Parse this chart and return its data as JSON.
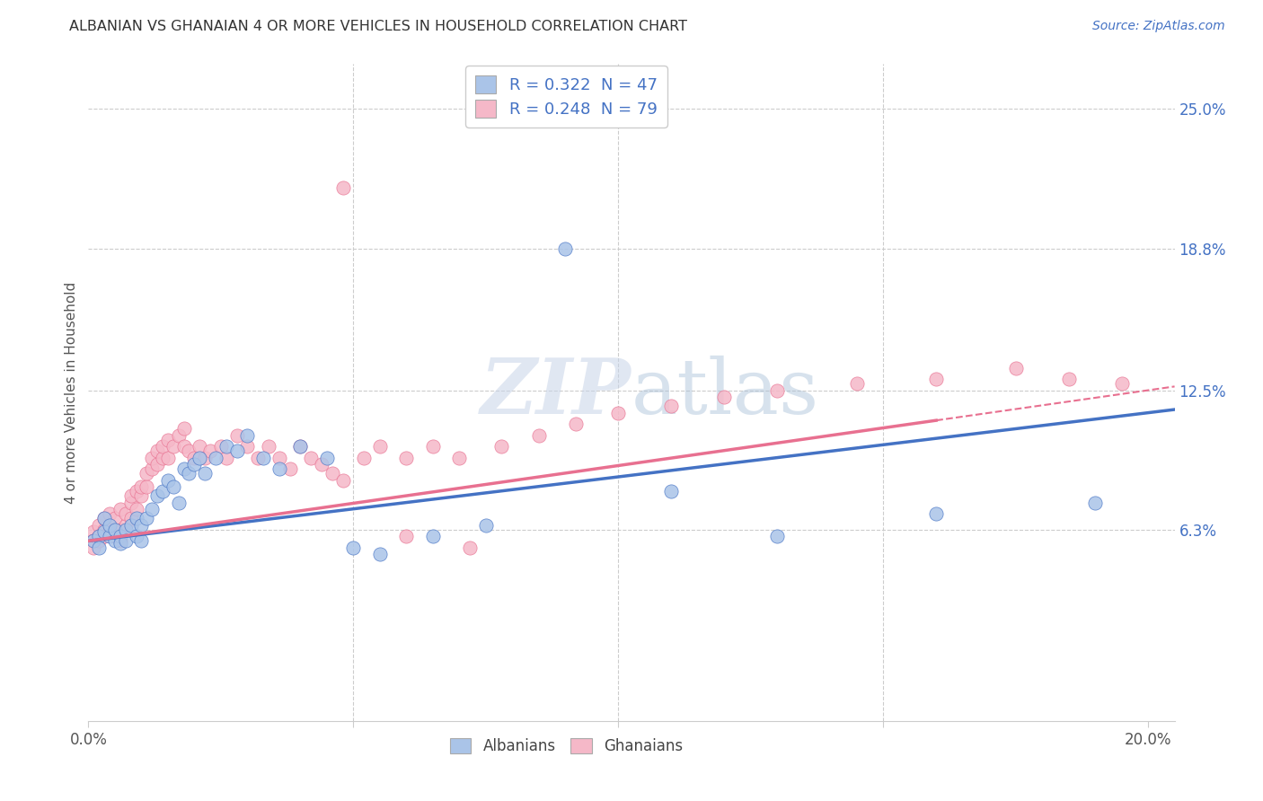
{
  "title": "ALBANIAN VS GHANAIAN 4 OR MORE VEHICLES IN HOUSEHOLD CORRELATION CHART",
  "source": "Source: ZipAtlas.com",
  "ylabel": "4 or more Vehicles in Household",
  "ytick_labels": [
    "6.3%",
    "12.5%",
    "18.8%",
    "25.0%"
  ],
  "ytick_values": [
    0.063,
    0.125,
    0.188,
    0.25
  ],
  "xlim": [
    0.0,
    0.205
  ],
  "ylim": [
    -0.022,
    0.27
  ],
  "background_color": "#ffffff",
  "grid_color": "#cccccc",
  "albanian_color": "#aac4e8",
  "ghanaian_color": "#f5b8c8",
  "albanian_line_color": "#4472c4",
  "ghanaian_line_color": "#e87090",
  "albanian_R": 0.322,
  "albanian_N": 47,
  "ghanaian_R": 0.248,
  "ghanaian_N": 79,
  "watermark_zip": "ZIP",
  "watermark_atlas": "atlas",
  "tick_label_color": "#4472c4",
  "title_color": "#333333",
  "source_color": "#4472c4",
  "albanian_x": [
    0.001,
    0.002,
    0.002,
    0.003,
    0.003,
    0.004,
    0.004,
    0.005,
    0.005,
    0.006,
    0.006,
    0.007,
    0.007,
    0.008,
    0.009,
    0.009,
    0.01,
    0.01,
    0.011,
    0.012,
    0.013,
    0.014,
    0.015,
    0.016,
    0.017,
    0.018,
    0.019,
    0.02,
    0.021,
    0.022,
    0.024,
    0.026,
    0.028,
    0.03,
    0.033,
    0.036,
    0.04,
    0.045,
    0.05,
    0.055,
    0.065,
    0.075,
    0.09,
    0.11,
    0.13,
    0.16,
    0.19
  ],
  "albanian_y": [
    0.058,
    0.06,
    0.055,
    0.062,
    0.068,
    0.06,
    0.065,
    0.058,
    0.063,
    0.06,
    0.057,
    0.063,
    0.058,
    0.065,
    0.06,
    0.068,
    0.065,
    0.058,
    0.068,
    0.072,
    0.078,
    0.08,
    0.085,
    0.082,
    0.075,
    0.09,
    0.088,
    0.092,
    0.095,
    0.088,
    0.095,
    0.1,
    0.098,
    0.105,
    0.095,
    0.09,
    0.1,
    0.095,
    0.055,
    0.052,
    0.06,
    0.065,
    0.188,
    0.08,
    0.06,
    0.07,
    0.075
  ],
  "ghanaian_x": [
    0.001,
    0.001,
    0.001,
    0.002,
    0.002,
    0.002,
    0.003,
    0.003,
    0.003,
    0.004,
    0.004,
    0.004,
    0.005,
    0.005,
    0.005,
    0.006,
    0.006,
    0.006,
    0.007,
    0.007,
    0.008,
    0.008,
    0.008,
    0.009,
    0.009,
    0.01,
    0.01,
    0.011,
    0.011,
    0.012,
    0.012,
    0.013,
    0.013,
    0.014,
    0.014,
    0.015,
    0.015,
    0.016,
    0.017,
    0.018,
    0.018,
    0.019,
    0.02,
    0.021,
    0.022,
    0.023,
    0.025,
    0.026,
    0.028,
    0.03,
    0.032,
    0.034,
    0.036,
    0.038,
    0.04,
    0.042,
    0.044,
    0.046,
    0.048,
    0.052,
    0.055,
    0.06,
    0.065,
    0.07,
    0.078,
    0.085,
    0.092,
    0.1,
    0.11,
    0.12,
    0.13,
    0.145,
    0.16,
    0.175,
    0.185,
    0.195,
    0.06,
    0.072,
    0.048
  ],
  "ghanaian_y": [
    0.062,
    0.058,
    0.055,
    0.065,
    0.06,
    0.058,
    0.063,
    0.06,
    0.068,
    0.062,
    0.065,
    0.07,
    0.06,
    0.063,
    0.068,
    0.058,
    0.063,
    0.072,
    0.065,
    0.07,
    0.068,
    0.075,
    0.078,
    0.072,
    0.08,
    0.078,
    0.082,
    0.082,
    0.088,
    0.09,
    0.095,
    0.092,
    0.098,
    0.095,
    0.1,
    0.095,
    0.103,
    0.1,
    0.105,
    0.1,
    0.108,
    0.098,
    0.095,
    0.1,
    0.095,
    0.098,
    0.1,
    0.095,
    0.105,
    0.1,
    0.095,
    0.1,
    0.095,
    0.09,
    0.1,
    0.095,
    0.092,
    0.088,
    0.085,
    0.095,
    0.1,
    0.095,
    0.1,
    0.095,
    0.1,
    0.105,
    0.11,
    0.115,
    0.118,
    0.122,
    0.125,
    0.128,
    0.13,
    0.135,
    0.13,
    0.128,
    0.06,
    0.055,
    0.215
  ]
}
